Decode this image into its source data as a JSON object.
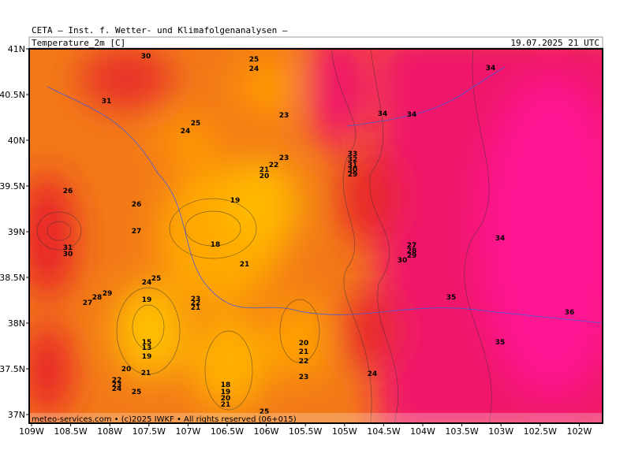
{
  "header": {
    "title": "CETA — Inst. f. Wetter- und Klimafolgenanalysen —",
    "field": "Temperature_2m [C]",
    "valid_time": "19.07.2025 21 UTC"
  },
  "map": {
    "lat_ticks": [
      "41N",
      "40.5N",
      "40N",
      "39.5N",
      "39N",
      "38.5N",
      "38N",
      "37.5N",
      "37N"
    ],
    "lon_ticks": [
      "109W",
      "108.5W",
      "108W",
      "107.5W",
      "107W",
      "106.5W",
      "106W",
      "105.5W",
      "105W",
      "104.5W",
      "104W",
      "103.5W",
      "103W",
      "102.5W",
      "102W"
    ],
    "contour_labels": [
      "30",
      "25",
      "24",
      "31",
      "23",
      "25",
      "24",
      "34",
      "34",
      "34",
      "23",
      "22",
      "21",
      "20",
      "33",
      "32",
      "31",
      "30",
      "29",
      "26",
      "19",
      "26",
      "27",
      "18",
      "31",
      "30",
      "27",
      "28",
      "29",
      "30",
      "34",
      "21",
      "24",
      "25",
      "19",
      "23",
      "22",
      "21",
      "28",
      "29",
      "27",
      "35",
      "36",
      "15",
      "13",
      "19",
      "20",
      "21",
      "22",
      "20",
      "21",
      "23",
      "24",
      "35",
      "22",
      "23",
      "24",
      "25",
      "18",
      "19",
      "20",
      "21",
      "25"
    ],
    "footer": "meteo-services.com • (c)2025 IWKF • All rights reserved (06+015)"
  }
}
